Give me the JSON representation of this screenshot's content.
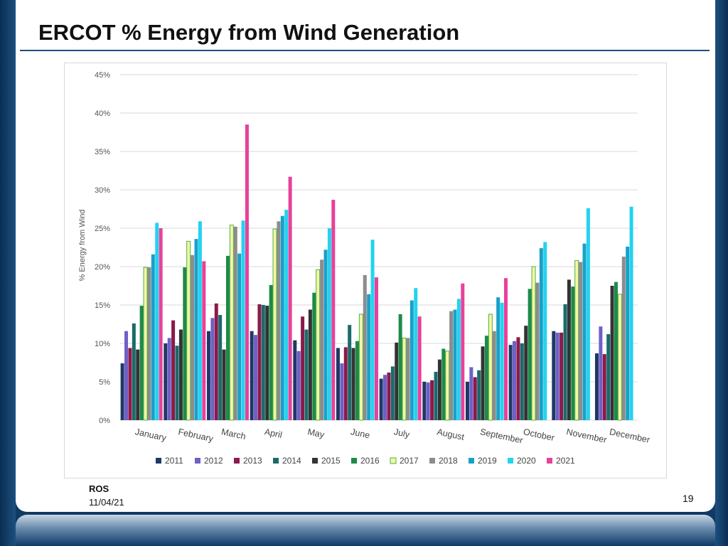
{
  "slide": {
    "title": "ERCOT % Energy from Wind Generation",
    "footer_org": "ROS",
    "footer_date": "11/04/21",
    "page_number": "19"
  },
  "chart_data": {
    "type": "bar",
    "ylabel": "% Energy from Wind",
    "ylim": [
      0,
      45
    ],
    "yticks": [
      0,
      5,
      10,
      15,
      20,
      25,
      30,
      35,
      40,
      45
    ],
    "ytick_labels": [
      "0%",
      "5%",
      "10%",
      "15%",
      "20%",
      "25%",
      "30%",
      "35%",
      "40%",
      "45%"
    ],
    "grid": true,
    "legend_position": "bottom",
    "categories": [
      "January",
      "February",
      "March",
      "April",
      "May",
      "June",
      "July",
      "August",
      "September",
      "October",
      "November",
      "December"
    ],
    "series": [
      {
        "name": "2011",
        "color": "#1f3864",
        "values": [
          7.4,
          10.0,
          11.6,
          11.6,
          10.4,
          9.4,
          5.4,
          5.0,
          5.0,
          9.8,
          11.6,
          8.7
        ]
      },
      {
        "name": "2012",
        "color": "#6f5fc6",
        "values": [
          11.6,
          10.7,
          13.3,
          11.1,
          9.0,
          7.4,
          5.9,
          4.9,
          6.9,
          10.3,
          11.4,
          12.2
        ]
      },
      {
        "name": "2013",
        "color": "#8b1a4a",
        "values": [
          9.4,
          13.0,
          15.2,
          15.1,
          13.5,
          9.5,
          6.2,
          5.2,
          5.6,
          10.8,
          11.4,
          8.6
        ]
      },
      {
        "name": "2014",
        "color": "#1b6b6b",
        "values": [
          12.6,
          9.7,
          13.7,
          15.0,
          11.8,
          12.4,
          7.0,
          6.3,
          6.5,
          10.0,
          15.1,
          11.2
        ]
      },
      {
        "name": "2015",
        "color": "#333333",
        "values": [
          9.2,
          11.8,
          9.2,
          14.9,
          14.4,
          9.4,
          10.1,
          7.9,
          9.6,
          12.3,
          18.3,
          17.5
        ]
      },
      {
        "name": "2016",
        "color": "#1e8a4a",
        "values": [
          14.9,
          19.9,
          21.4,
          17.6,
          16.6,
          10.3,
          13.8,
          9.3,
          11.0,
          17.1,
          17.4,
          18.0
        ]
      },
      {
        "name": "2017",
        "color": "#f4f7a0",
        "edge": "#4caf50",
        "values": [
          19.9,
          23.3,
          25.4,
          24.9,
          19.6,
          13.8,
          10.7,
          9.0,
          13.8,
          20.0,
          20.8,
          16.4
        ]
      },
      {
        "name": "2018",
        "color": "#8c8c8c",
        "values": [
          19.9,
          21.5,
          25.2,
          25.9,
          20.9,
          18.9,
          10.7,
          14.2,
          11.6,
          17.9,
          20.6,
          21.3
        ]
      },
      {
        "name": "2019",
        "color": "#1aa0c8",
        "values": [
          21.6,
          23.6,
          21.7,
          26.6,
          22.2,
          16.4,
          15.6,
          14.4,
          16.0,
          22.4,
          23.0,
          22.6
        ]
      },
      {
        "name": "2020",
        "color": "#22d3f0",
        "values": [
          25.7,
          25.9,
          26.0,
          27.4,
          25.0,
          23.5,
          17.2,
          15.8,
          15.3,
          23.2,
          27.6,
          27.8
        ]
      },
      {
        "name": "2021",
        "color": "#e8419a",
        "values": [
          25.0,
          20.7,
          38.5,
          31.7,
          28.7,
          18.6,
          13.5,
          17.8,
          18.5,
          null,
          null,
          null
        ]
      }
    ]
  }
}
